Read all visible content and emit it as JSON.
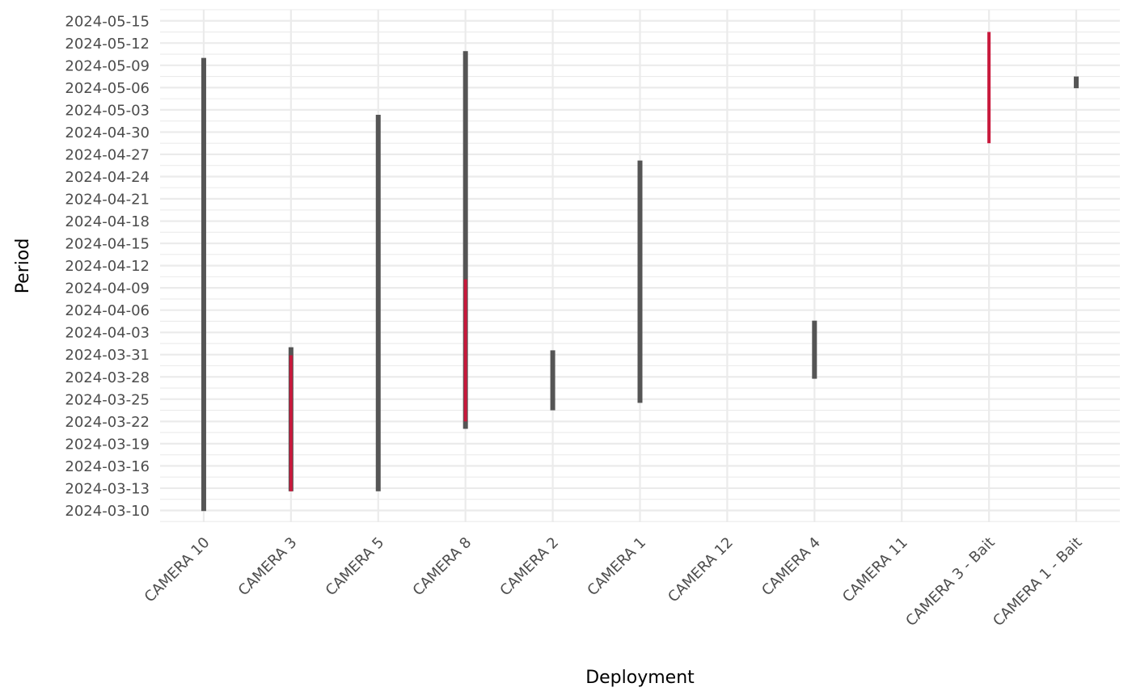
{
  "chart_data": {
    "type": "range",
    "xlabel": "Deployment",
    "ylabel": "Period",
    "categories": [
      "CAMERA 10",
      "CAMERA 3",
      "CAMERA 5",
      "CAMERA 8",
      "CAMERA 2",
      "CAMERA 1",
      "CAMERA 12",
      "CAMERA 4",
      "CAMERA 11",
      "CAMERA 3 - Bait",
      "CAMERA 1 - Bait"
    ],
    "y_ticks": [
      "2024-03-10",
      "2024-03-13",
      "2024-03-16",
      "2024-03-19",
      "2024-03-22",
      "2024-03-25",
      "2024-03-28",
      "2024-03-31",
      "2024-04-03",
      "2024-04-06",
      "2024-04-09",
      "2024-04-12",
      "2024-04-15",
      "2024-04-18",
      "2024-04-21",
      "2024-04-24",
      "2024-04-27",
      "2024-04-30",
      "2024-05-03",
      "2024-05-06",
      "2024-05-09",
      "2024-05-12",
      "2024-05-15"
    ],
    "ylim": [
      "2024-03-08T10:00",
      "2024-05-16T12:00"
    ],
    "colors": {
      "deployment": "#555555",
      "highlight": "#c8193c"
    },
    "grid": true,
    "deployments": [
      {
        "category": "CAMERA 10",
        "start": "2024-03-09T22:00",
        "end": "2024-05-10T00:00"
      },
      {
        "category": "CAMERA 3",
        "start": "2024-03-12T14:00",
        "end": "2024-04-01T00:00"
      },
      {
        "category": "CAMERA 5",
        "start": "2024-03-12T14:00",
        "end": "2024-05-02T08:00"
      },
      {
        "category": "CAMERA 8",
        "start": "2024-03-21T00:00",
        "end": "2024-05-10T22:00"
      },
      {
        "category": "CAMERA 2",
        "start": "2024-03-23T12:00",
        "end": "2024-03-31T14:00"
      },
      {
        "category": "CAMERA 1",
        "start": "2024-03-24T12:00",
        "end": "2024-04-26T04:00"
      },
      {
        "category": "CAMERA 4",
        "start": "2024-03-27T18:00",
        "end": "2024-04-04T14:00"
      },
      {
        "category": "CAMERA 1 - Bait",
        "start": "2024-05-05T22:00",
        "end": "2024-05-07T12:00"
      }
    ],
    "highlighted_periods": [
      {
        "category": "CAMERA 3",
        "start": "2024-03-12T14:00",
        "end": "2024-03-30T22:00"
      },
      {
        "category": "CAMERA 8",
        "start": "2024-03-22T00:00",
        "end": "2024-04-10T04:00"
      },
      {
        "category": "CAMERA 3 - Bait",
        "start": "2024-04-28T12:00",
        "end": "2024-05-13T12:00"
      }
    ]
  }
}
